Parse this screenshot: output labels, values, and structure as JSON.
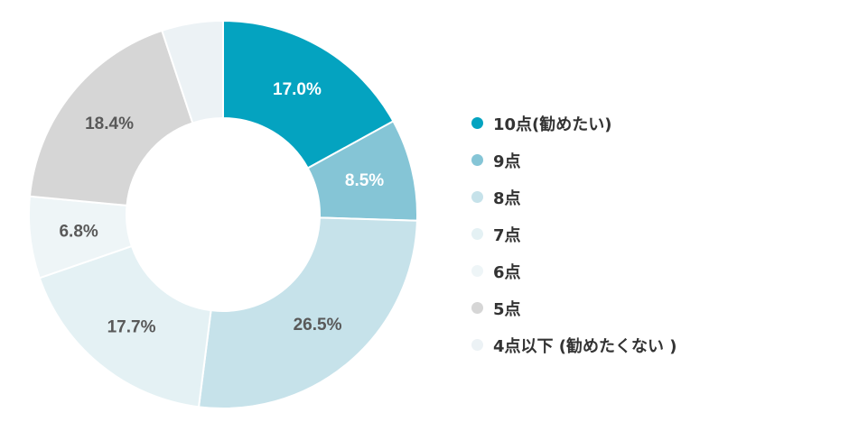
{
  "chart_data": {
    "type": "pie",
    "donut": true,
    "title": "",
    "legend_position": "right",
    "categories": [
      "10点(勧めたい)",
      "9点",
      "8点",
      "7点",
      "6点",
      "5点",
      "4点以下 (勧めたくない )"
    ],
    "values": [
      17.0,
      8.5,
      26.5,
      17.7,
      6.8,
      18.4,
      5.1
    ],
    "labels": [
      "17.0%",
      "8.5%",
      "26.5%",
      "17.7%",
      "6.8%",
      "18.4%",
      ""
    ],
    "colors": [
      "#04a3c0",
      "#85c5d6",
      "#c6e2ea",
      "#e4f1f4",
      "#eef5f7",
      "#d6d6d6",
      "#ecf2f5"
    ],
    "label_colors": [
      "#ffffff",
      "#ffffff",
      "#595959",
      "#595959",
      "#595959",
      "#595959",
      "#595959"
    ]
  }
}
